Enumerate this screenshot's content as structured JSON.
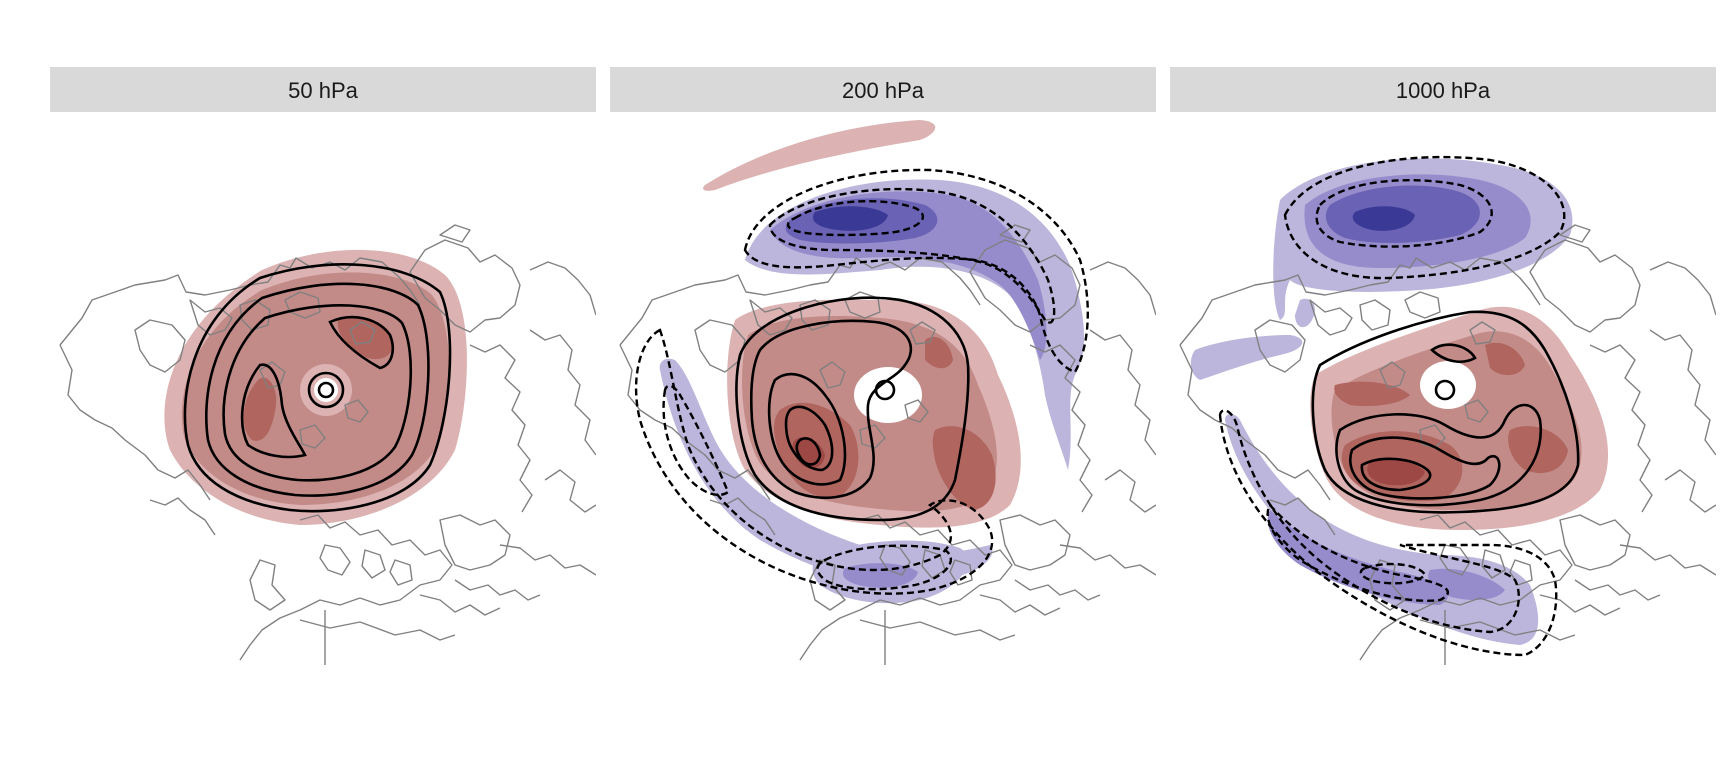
{
  "figure": {
    "panels": [
      {
        "id": "p50",
        "title": "50 hPa"
      },
      {
        "id": "p200",
        "title": "200 hPa"
      },
      {
        "id": "p1000",
        "title": "1000 hPa"
      }
    ]
  },
  "colors": {
    "pos_1": "#dcb2b2",
    "pos_2": "#c38b88",
    "pos_3": "#b0655f",
    "pos_4": "#9d4845",
    "neg_1": "#bcb5dc",
    "neg_2": "#968ccc",
    "neg_3": "#6a62b4",
    "neg_4": "#3a3a96",
    "coastline": "#808080",
    "contour": "#000000",
    "strip": "#d9d9d9"
  }
}
